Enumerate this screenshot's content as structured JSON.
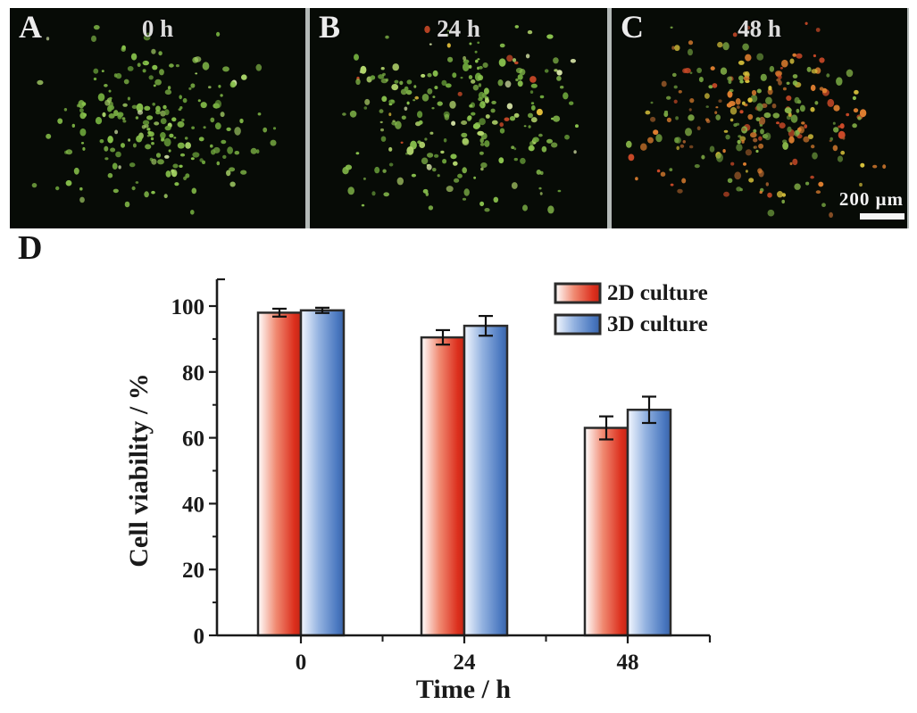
{
  "figure": {
    "panels": [
      {
        "letter": "A",
        "time_label": "0 h",
        "dots": {
          "seed": 7,
          "count": 205,
          "palette": [
            [
              "#86bf4a",
              58
            ],
            [
              "#6ea63c",
              25
            ],
            [
              "#a8d468",
              12
            ],
            [
              "#d2e4a6",
              5
            ]
          ]
        }
      },
      {
        "letter": "B",
        "time_label": "24 h",
        "dots": {
          "seed": 13,
          "count": 238,
          "palette": [
            [
              "#8ac24e",
              52
            ],
            [
              "#6ea63c",
              22
            ],
            [
              "#b5d86e",
              14
            ],
            [
              "#d8e6a8",
              5
            ],
            [
              "#cc4a28",
              4
            ],
            [
              "#e6c23c",
              3
            ]
          ]
        }
      },
      {
        "letter": "C",
        "time_label": "48 h",
        "dots": {
          "seed": 29,
          "count": 252,
          "palette": [
            [
              "#6f9c3e",
              26
            ],
            [
              "#8ab94a",
              16
            ],
            [
              "#cc4a28",
              18
            ],
            [
              "#e08030",
              16
            ],
            [
              "#d8c23c",
              14
            ],
            [
              "#9c5a2a",
              10
            ]
          ]
        }
      }
    ],
    "scale_bar": {
      "label": "200 μm"
    },
    "panel_d": {
      "letter": "D"
    }
  },
  "chart_data": {
    "type": "bar",
    "title": "",
    "xlabel": "Time / h",
    "ylabel": "Cell viability / %",
    "categories": [
      "0",
      "24",
      "48"
    ],
    "series": [
      {
        "name": "2D culture",
        "color": "#dc2f1d",
        "values": [
          98.0,
          90.5,
          63.0
        ],
        "errors": [
          1.2,
          2.2,
          3.5
        ]
      },
      {
        "name": "3D culture",
        "color": "#4a78c0",
        "values": [
          98.7,
          94.0,
          68.5
        ],
        "errors": [
          0.8,
          3.0,
          4.0
        ]
      }
    ],
    "ylim": [
      0,
      108
    ],
    "yticks_major": [
      0,
      20,
      40,
      60,
      80,
      100
    ],
    "yticks_minor": [
      10,
      30,
      50,
      70,
      90
    ],
    "grid": false,
    "legend_position": "top-right"
  }
}
